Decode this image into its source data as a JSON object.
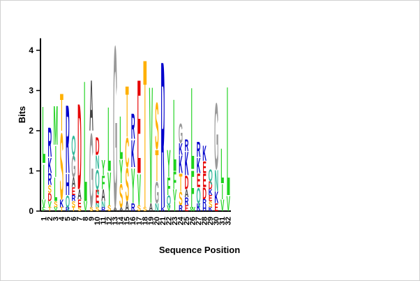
{
  "chart_data": {
    "type": "sequence-logo",
    "title": "",
    "xlabel": "Sequence Position",
    "ylabel": "Bits",
    "ylim": [
      0,
      4.3
    ],
    "y_ticks": [
      "0",
      "1",
      "2",
      "3",
      "4"
    ],
    "grid": false,
    "legend": "none",
    "colors": {
      "I": "#1ed21e",
      "L": "#1ed21e",
      "V": "#1ed21e",
      "M": "#1ed21e",
      "F": "#1ed21e",
      "W": "#1ed21e",
      "Y": "#1ed21e",
      "K": "#0000cc",
      "R": "#0000cc",
      "H": "#0000cc",
      "D": "#e60000",
      "E": "#e60000",
      "S": "#ffb000",
      "T": "#ffb000",
      "C": "#ffb000",
      "N": "#33b89a",
      "Q": "#33b89a",
      "G": "#999999",
      "P": "#999999",
      "A": "#444444"
    },
    "positions": [
      {
        "pos": "1",
        "letters": [
          [
            "F",
            0.1
          ],
          [
            "V",
            0.2
          ],
          [
            "I",
            0.9
          ],
          [
            "L",
            1.45
          ]
        ]
      },
      {
        "pos": "2",
        "letters": [
          [
            "T",
            0.1
          ],
          [
            "V",
            0.15
          ],
          [
            "D",
            0.2
          ],
          [
            "S",
            0.2
          ],
          [
            "R",
            0.3
          ],
          [
            "K",
            0.4
          ],
          [
            "R",
            0.75
          ]
        ]
      },
      {
        "pos": "3",
        "letters": [
          [
            "V",
            0.1
          ],
          [
            "S",
            0.15
          ],
          [
            "L",
            0.6
          ],
          [
            "I",
            0.8
          ],
          [
            "M",
            1.0
          ]
        ]
      },
      {
        "pos": "4",
        "letters": [
          [
            "T",
            0.1
          ],
          [
            "K",
            0.2
          ],
          [
            "S",
            1.7
          ],
          [
            "T",
            0.95
          ]
        ]
      },
      {
        "pos": "5",
        "letters": [
          [
            "R",
            0.1
          ],
          [
            "Q",
            0.3
          ],
          [
            "H",
            0.55
          ],
          [
            "R",
            1.75
          ]
        ]
      },
      {
        "pos": "6",
        "letters": [
          [
            "T",
            0.1
          ],
          [
            "S",
            0.15
          ],
          [
            "R",
            0.15
          ],
          [
            "E",
            0.2
          ],
          [
            "A",
            0.25
          ],
          [
            "G",
            0.55
          ],
          [
            "Q",
            0.5
          ]
        ]
      },
      {
        "pos": "7",
        "letters": [
          [
            "S",
            0.1
          ],
          [
            "E",
            0.2
          ],
          [
            "A",
            0.25
          ],
          [
            "D",
            2.2
          ]
        ]
      },
      {
        "pos": "8",
        "letters": [
          [
            "V",
            0.25
          ],
          [
            "L",
            3.1
          ]
        ]
      },
      {
        "pos": "9",
        "letters": [
          [
            "S",
            0.1
          ],
          [
            "G",
            1.9
          ],
          [
            "A",
            1.3
          ]
        ]
      },
      {
        "pos": "10",
        "letters": [
          [
            "S",
            0.1
          ],
          [
            "N",
            0.1
          ],
          [
            "E",
            0.35
          ],
          [
            "Q",
            0.5
          ],
          [
            "N",
            0.35
          ],
          [
            "D",
            0.45
          ]
        ]
      },
      {
        "pos": "11",
        "letters": [
          [
            "R",
            0.1
          ],
          [
            "N",
            0.15
          ],
          [
            "A",
            0.3
          ],
          [
            "F",
            0.35
          ],
          [
            "Y",
            0.4
          ]
        ]
      },
      {
        "pos": "12",
        "letters": [
          [
            "S",
            0.15
          ],
          [
            "Y",
            0.85
          ],
          [
            "L",
            1.65
          ]
        ]
      },
      {
        "pos": "13",
        "letters": [
          [
            "A",
            0.1
          ],
          [
            "G",
            4.15
          ]
        ]
      },
      {
        "pos": "14",
        "letters": [
          [
            "A",
            0.1
          ],
          [
            "S",
            0.6
          ],
          [
            "Y",
            0.6
          ],
          [
            "L",
            1.1
          ]
        ]
      },
      {
        "pos": "15",
        "letters": [
          [
            "A",
            0.25
          ],
          [
            "S",
            0.85
          ],
          [
            "C",
            0.75
          ],
          [
            "T",
            1.3
          ]
        ]
      },
      {
        "pos": "16",
        "letters": [
          [
            "R",
            0.2
          ],
          [
            "Y",
            0.9
          ],
          [
            "K",
            0.7
          ],
          [
            "R",
            0.65
          ]
        ]
      },
      {
        "pos": "17",
        "letters": [
          [
            "S",
            0.15
          ],
          [
            "V",
            0.8
          ],
          [
            "E",
            2.4
          ]
        ]
      },
      {
        "pos": "18",
        "letters": [
          [
            "S",
            0.1
          ],
          [
            "T",
            3.8
          ]
        ]
      },
      {
        "pos": "19",
        "letters": [
          [
            "A",
            0.2
          ],
          [
            "V",
            3.0
          ]
        ]
      },
      {
        "pos": "20",
        "letters": [
          [
            "N",
            0.2
          ],
          [
            "G",
            0.55
          ],
          [
            "T",
            0.8
          ],
          [
            "S",
            1.2
          ]
        ]
      },
      {
        "pos": "21",
        "letters": [
          [
            "K",
            0.1
          ],
          [
            "R",
            3.75
          ]
        ]
      },
      {
        "pos": "22",
        "letters": [
          [
            "V",
            0.15
          ],
          [
            "Q",
            0.25
          ],
          [
            "F",
            0.45
          ],
          [
            "Y",
            0.7
          ]
        ]
      },
      {
        "pos": "23",
        "letters": [
          [
            "I",
            0.25
          ],
          [
            "V",
            0.3
          ],
          [
            "F",
            0.45
          ],
          [
            "L",
            1.85
          ]
        ]
      },
      {
        "pos": "24",
        "letters": [
          [
            "R",
            0.15
          ],
          [
            "S",
            0.35
          ],
          [
            "T",
            0.45
          ],
          [
            "K",
            0.45
          ],
          [
            "K",
            0.3
          ],
          [
            "G",
            0.5
          ]
        ]
      },
      {
        "pos": "25",
        "letters": [
          [
            "E",
            0.15
          ],
          [
            "R",
            0.2
          ],
          [
            "A",
            0.2
          ],
          [
            "D",
            0.35
          ],
          [
            "K",
            0.6
          ],
          [
            "R",
            0.3
          ]
        ]
      },
      {
        "pos": "26",
        "letters": [
          [
            "W",
            0.1
          ],
          [
            "F",
            0.95
          ],
          [
            "L",
            2.1
          ]
        ]
      },
      {
        "pos": "27",
        "letters": [
          [
            "K",
            0.2
          ],
          [
            "Q",
            0.4
          ],
          [
            "E",
            0.35
          ],
          [
            "K",
            0.4
          ],
          [
            "R",
            0.4
          ]
        ]
      },
      {
        "pos": "28",
        "letters": [
          [
            "H",
            0.15
          ],
          [
            "R",
            0.15
          ],
          [
            "D",
            0.3
          ],
          [
            "E",
            0.35
          ],
          [
            "E",
            0.3
          ],
          [
            "K",
            0.4
          ]
        ]
      },
      {
        "pos": "29",
        "letters": [
          [
            "K",
            0.1
          ],
          [
            "S",
            0.15
          ],
          [
            "E",
            0.15
          ],
          [
            "K",
            0.15
          ],
          [
            "D",
            0.2
          ],
          [
            "Q",
            0.3
          ]
        ]
      },
      {
        "pos": "30",
        "letters": [
          [
            "E",
            0.2
          ],
          [
            "K",
            0.3
          ],
          [
            "N",
            0.55
          ],
          [
            "G",
            1.7
          ]
        ]
      },
      {
        "pos": "31",
        "letters": [
          [
            "V",
            0.3
          ],
          [
            "I",
            0.4
          ],
          [
            "L",
            0.9
          ]
        ]
      },
      {
        "pos": "32",
        "letters": [
          [
            "V",
            0.4
          ],
          [
            "L",
            2.8
          ]
        ]
      }
    ]
  }
}
